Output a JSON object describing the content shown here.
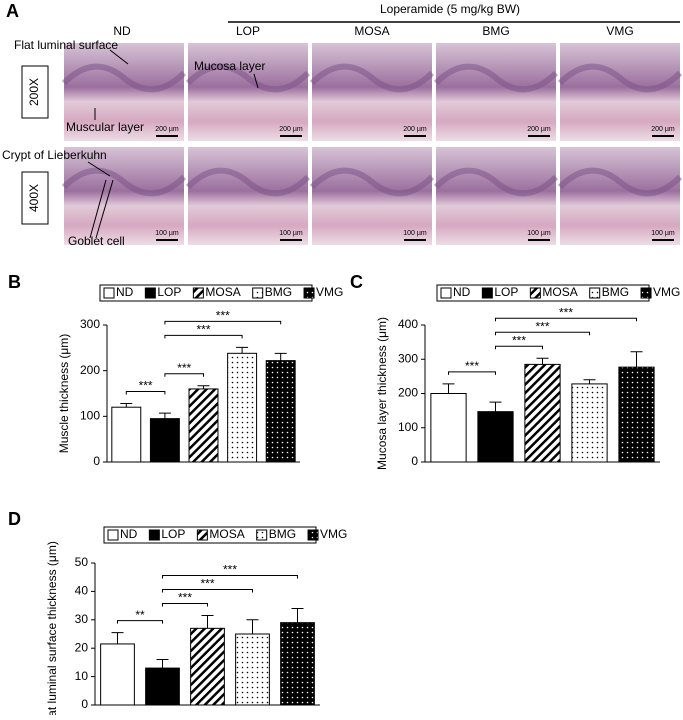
{
  "panel_a": {
    "label": "A",
    "header": "Loperamide (5 mg/kg BW)",
    "groups": [
      "ND",
      "LOP",
      "MOSA",
      "BMG",
      "VMG"
    ],
    "rows": [
      "200X",
      "400X"
    ],
    "scale_bars": [
      "200 µm",
      "100 µm"
    ],
    "annotations": [
      "Flat luminal surface",
      "Muscular layer",
      "Mucosa layer",
      "Crypt of Lieberkuhn",
      "Goblet cell"
    ]
  },
  "chart_data": [
    {
      "type": "bar",
      "panel": "B",
      "ylabel": "Muscle thickness (μm)",
      "categories": [
        "ND",
        "LOP",
        "MOSA",
        "BMG",
        "VMG"
      ],
      "values": [
        120,
        95,
        160,
        238,
        222
      ],
      "errors": [
        8,
        12,
        7,
        13,
        16
      ],
      "fills": [
        "white",
        "black",
        "hatch",
        "dots",
        "black-dots"
      ],
      "ylim": [
        0,
        300
      ],
      "yticks": [
        0,
        100,
        200,
        300
      ],
      "legend": "top",
      "brackets": [
        {
          "from": 0,
          "to": 1,
          "label": "***"
        },
        {
          "from": 1,
          "to": 2,
          "label": "***"
        },
        {
          "from": 1,
          "to": 3,
          "label": "***"
        },
        {
          "from": 1,
          "to": 4,
          "label": "***"
        }
      ]
    },
    {
      "type": "bar",
      "panel": "C",
      "ylabel": "Mucosa layer thickness (μm)",
      "categories": [
        "ND",
        "LOP",
        "MOSA",
        "BMG",
        "VMG"
      ],
      "values": [
        200,
        147,
        285,
        228,
        277
      ],
      "errors": [
        28,
        28,
        18,
        12,
        45
      ],
      "fills": [
        "white",
        "black",
        "hatch",
        "dots",
        "black-dots"
      ],
      "ylim": [
        0,
        400
      ],
      "yticks": [
        0,
        100,
        200,
        300,
        400
      ],
      "legend": "top",
      "brackets": [
        {
          "from": 0,
          "to": 1,
          "label": "***"
        },
        {
          "from": 1,
          "to": 2,
          "label": "***"
        },
        {
          "from": 1,
          "to": 3,
          "label": "***"
        },
        {
          "from": 1,
          "to": 4,
          "label": "***"
        }
      ]
    },
    {
      "type": "bar",
      "panel": "D",
      "ylabel": "Flat luminal surface thickness (μm)",
      "categories": [
        "ND",
        "LOP",
        "MOSA",
        "BMG",
        "VMG"
      ],
      "values": [
        21.5,
        13,
        27,
        25,
        29
      ],
      "errors": [
        4,
        3,
        4.5,
        5,
        5
      ],
      "fills": [
        "white",
        "black",
        "hatch",
        "dots",
        "black-dots"
      ],
      "ylim": [
        0,
        50
      ],
      "yticks": [
        0,
        10,
        20,
        30,
        40,
        50
      ],
      "legend": "top",
      "brackets": [
        {
          "from": 0,
          "to": 1,
          "label": "**"
        },
        {
          "from": 1,
          "to": 2,
          "label": "***"
        },
        {
          "from": 1,
          "to": 3,
          "label": "***"
        },
        {
          "from": 1,
          "to": 4,
          "label": "***"
        }
      ]
    }
  ]
}
